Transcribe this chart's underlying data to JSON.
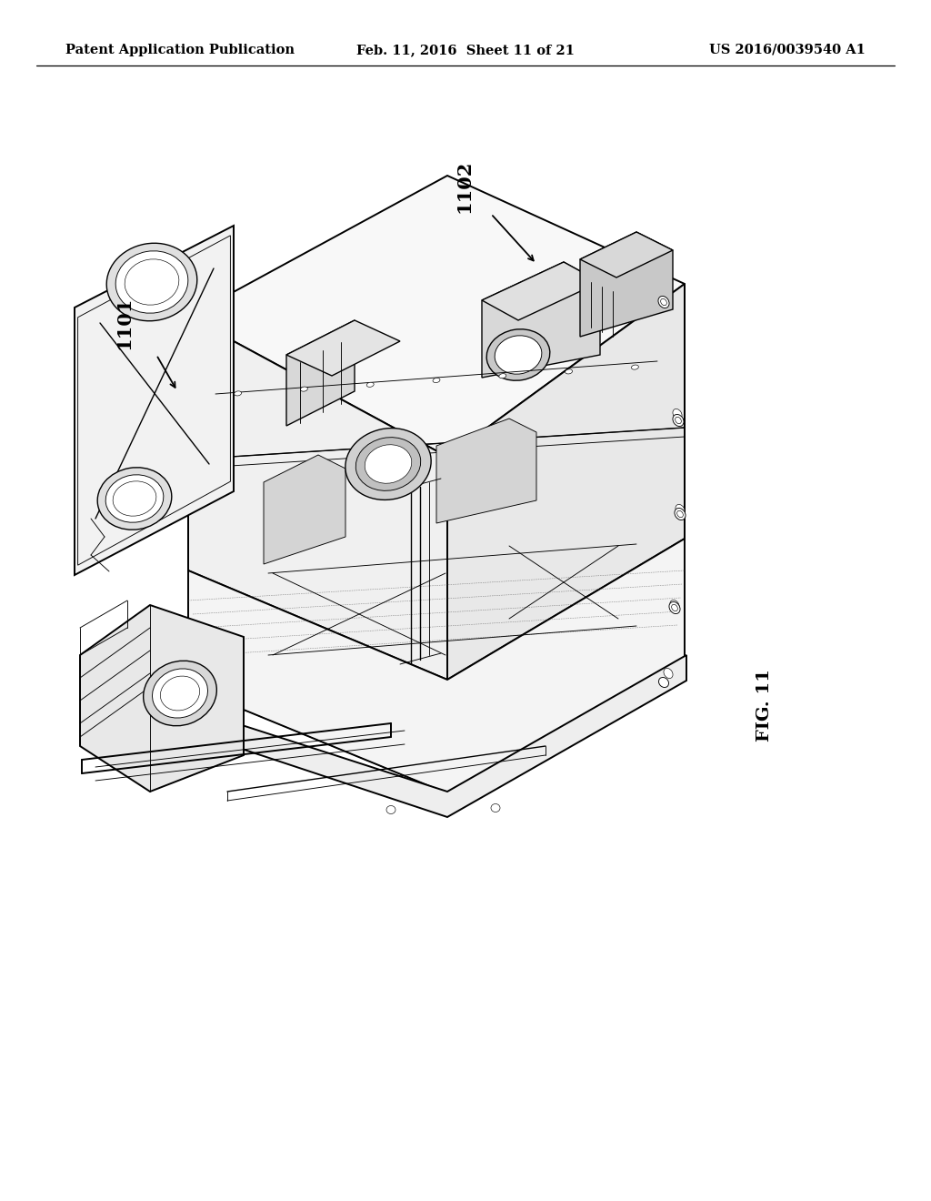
{
  "bg_color": "#ffffff",
  "header_left": "Patent Application Publication",
  "header_center": "Feb. 11, 2016  Sheet 11 of 21",
  "header_right": "US 2016/0039540 A1",
  "fig_label": "FIG. 11",
  "label_1101": "1101",
  "label_1102": "1102",
  "header_fontsize": 10.5,
  "label_fontsize": 15,
  "fig_fontsize": 14
}
